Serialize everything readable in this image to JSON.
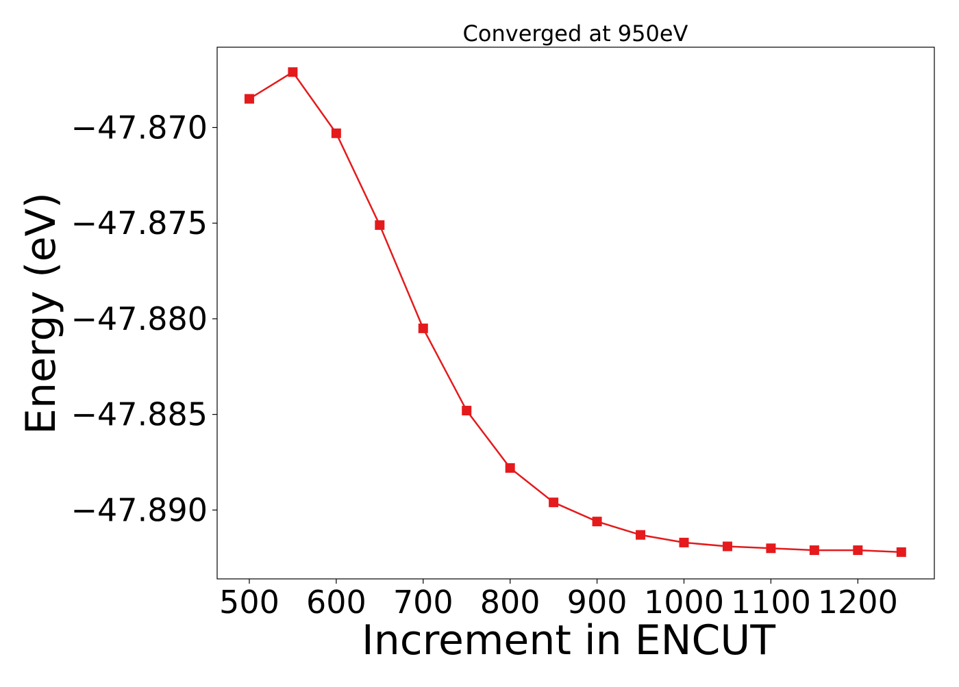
{
  "chart_data": {
    "type": "line",
    "title": "Converged at 950eV",
    "xlabel": "Increment in ENCUT",
    "ylabel": "Energy (eV)",
    "x": [
      500,
      550,
      600,
      650,
      700,
      750,
      800,
      850,
      900,
      950,
      1000,
      1050,
      1100,
      1150,
      1200,
      1250
    ],
    "series": [
      {
        "values": [
          -47.8685,
          -47.8671,
          -47.8703,
          -47.8751,
          -47.8805,
          -47.8848,
          -47.8878,
          -47.8896,
          -47.8906,
          -47.8913,
          -47.8917,
          -47.8919,
          -47.892,
          -47.8921,
          -47.8921,
          -47.8922
        ],
        "color": "#e41a1c",
        "marker": "square"
      }
    ],
    "xlim": [
      463,
      1288
    ],
    "ylim": [
      -47.8936,
      -47.8658
    ],
    "xticks": [
      500,
      600,
      700,
      800,
      900,
      1000,
      1100,
      1200
    ],
    "xtick_labels": [
      "500",
      "600",
      "700",
      "800",
      "900",
      "1000",
      "1100",
      "1200"
    ],
    "yticks": [
      -47.87,
      -47.875,
      -47.88,
      -47.885,
      -47.89
    ],
    "ytick_labels": [
      "−47.870",
      "−47.875",
      "−47.880",
      "−47.885",
      "−47.890"
    ],
    "grid": false,
    "legend": "none"
  }
}
